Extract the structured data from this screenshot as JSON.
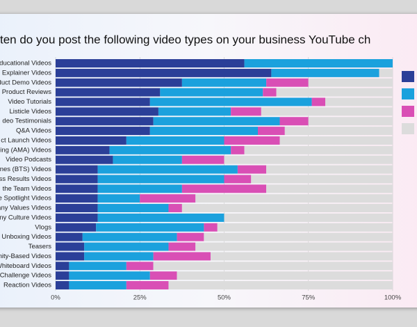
{
  "chart_data": {
    "type": "stacked-bar",
    "orientation": "horizontal",
    "title": "ten do you post the following video types on your business YouTube ch",
    "categories": [
      "ducational Videos",
      "Explainer Videos",
      "duct Demo Videos",
      "Product Reviews",
      "Video Tutorials",
      "Listicle Videos",
      "deo Testimonials",
      "Q&A Videos",
      "ct Launch Videos",
      "ing (AMA) Videos",
      "Video Podcasts",
      "nes (BTS) Videos",
      "ss Results Videos",
      "the Team Videos",
      "e Spotlight Videos",
      "any Values Videos",
      "ny Culture Videos",
      "Vlogs",
      "Unboxing Videos",
      "Teasers",
      "nity-Based Videos",
      "Whiteboard Videos",
      "Challenge Videos",
      "Reaction Videos"
    ],
    "series": [
      {
        "color": "#2b3f98",
        "values": [
          56,
          64,
          37.5,
          31,
          28,
          30.5,
          29,
          28,
          21,
          16,
          17,
          12.5,
          12.5,
          12.5,
          12.5,
          12.5,
          12.5,
          12,
          8,
          8.5,
          8.5,
          4,
          4,
          4
        ]
      },
      {
        "color": "#1ba1dd",
        "values": [
          44,
          32,
          25,
          30.5,
          48,
          21.5,
          37.5,
          32,
          29,
          36,
          20.5,
          41.5,
          37.5,
          25,
          12.5,
          21,
          37.5,
          32,
          28,
          25,
          20.5,
          17,
          24,
          17
        ]
      },
      {
        "color": "#d94fb5",
        "values": [
          0,
          0,
          12.5,
          4,
          4,
          9,
          8.5,
          8,
          16.5,
          4,
          12.5,
          8.5,
          8,
          25,
          16.5,
          4,
          0,
          4,
          8,
          8,
          17,
          8,
          8,
          12.5
        ]
      },
      {
        "color": "#dcdcdc",
        "values": [
          0,
          4,
          25,
          34.5,
          20,
          39,
          25,
          32,
          33.5,
          44,
          50,
          37.5,
          42,
          37.5,
          58.5,
          62.5,
          50,
          52,
          56,
          58.5,
          54,
          71,
          64,
          66.5
        ]
      }
    ],
    "xlim": [
      0,
      100
    ],
    "xticks": [
      {
        "value": 0,
        "label": "0%"
      },
      {
        "value": 25,
        "label": "25%"
      },
      {
        "value": 50,
        "label": "50%"
      },
      {
        "value": 75,
        "label": "75%"
      },
      {
        "value": 100,
        "label": "100%"
      }
    ],
    "grid": true,
    "legend": "right"
  }
}
